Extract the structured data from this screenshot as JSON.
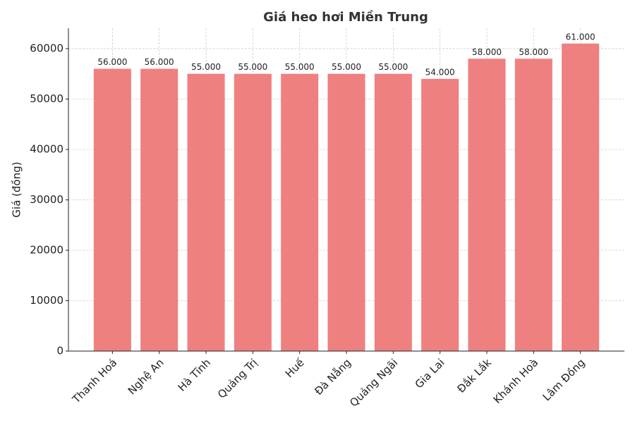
{
  "chart_data": {
    "type": "bar",
    "title": "Giá heo hơi Miền Trung",
    "y_label": "Giá (đồng)",
    "categories": [
      "Thanh Hoá",
      "Nghệ An",
      "Hà Tĩnh",
      "Quảng Trị",
      "Huế",
      "Đà Nẵng",
      "Quảng Ngãi",
      "Gia Lai",
      "Đắk Lắk",
      "Khánh Hoà",
      "Lâm Đồng"
    ],
    "values": [
      56000,
      56000,
      55000,
      55000,
      55000,
      55000,
      55000,
      54000,
      58000,
      58000,
      61000
    ],
    "value_labels": [
      "56.000",
      "56.000",
      "55.000",
      "55.000",
      "55.000",
      "55.000",
      "55.000",
      "54.000",
      "58.000",
      "58.000",
      "61.000"
    ],
    "color": "#ef8080",
    "ylim": [
      0,
      64050
    ],
    "yticks": [
      0,
      10000,
      20000,
      30000,
      40000,
      50000,
      60000
    ],
    "grid": true
  }
}
